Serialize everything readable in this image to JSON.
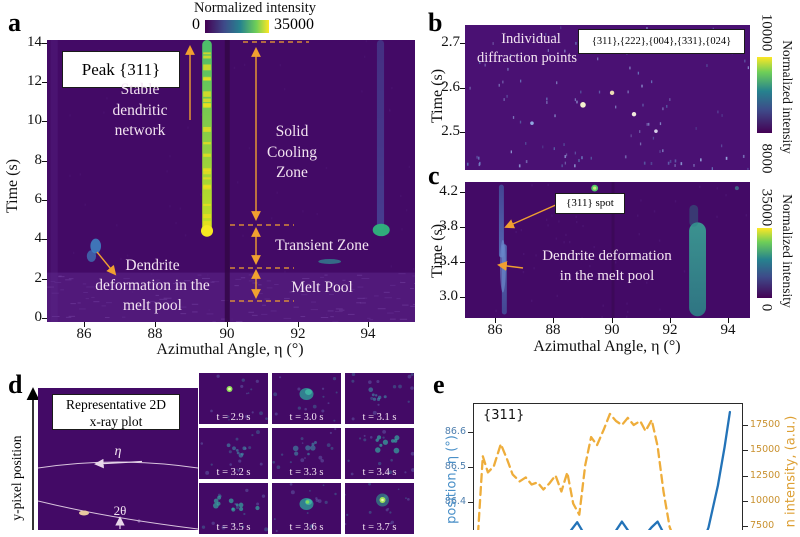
{
  "panels": {
    "a": {
      "label": "a",
      "colorbar": {
        "title": "Normalized intensity",
        "min": "0",
        "max": "35000"
      },
      "peak_box": "Peak {311}",
      "ylabel": "Time (s)",
      "xlabel": "Azimuthal Angle, η (°)",
      "yticks": [
        "14",
        "12",
        "10",
        "8",
        "6",
        "4",
        "2",
        "0"
      ],
      "xticks": [
        "86",
        "88",
        "90",
        "92",
        "94"
      ],
      "ann": {
        "stable": [
          "Stable",
          "dendritic",
          "network"
        ],
        "solid": [
          "Solid",
          "Cooling",
          "Zone"
        ],
        "transient": "Transient Zone",
        "melt": "Melt Pool",
        "dendrite": [
          "Dendrite",
          "deformation in the",
          "melt pool"
        ]
      }
    },
    "b": {
      "label": "b",
      "ylabel": "Time (s)",
      "yticks": [
        "2.7",
        "2.6",
        "2.5"
      ],
      "ann": {
        "line1": "Individual",
        "line2": "diffraction points"
      },
      "peaks_box": "{311},{222},{004},{331},{024}",
      "colorbar": {
        "title": "Normalized intensity",
        "max": "10000",
        "min": "8000"
      }
    },
    "c": {
      "label": "c",
      "ylabel": "Time (s)",
      "yticks": [
        "4.2",
        "3.8",
        "3.4",
        "3.0"
      ],
      "xticks": [
        "86",
        "88",
        "90",
        "92",
        "94"
      ],
      "xlabel": "Azimuthal Angle, η (°)",
      "spot_box": "{311} spot",
      "ann": {
        "line1": "Dendrite deformation",
        "line2": "in the melt pool"
      },
      "colorbar": {
        "title": "Normalized intensity",
        "max": "35000",
        "min": "0"
      }
    },
    "d": {
      "label": "d",
      "ylabel": "y-pixel position",
      "box": [
        "Representative 2D",
        "x-ray plot"
      ],
      "eta_symbol": "η",
      "two_theta": "2θ"
    },
    "e": {
      "label": "e",
      "peak": "{311}",
      "left_label": "position, η (°)",
      "right_label": "n intensity, (a.u.)",
      "left_ticks": [
        "86.6",
        "86.5",
        "86.4"
      ],
      "right_ticks": [
        "17500",
        "15000",
        "12500",
        "10000",
        "7500"
      ]
    }
  },
  "chart_data": [
    {
      "id": "a",
      "type": "heatmap",
      "title": "Peak {311}",
      "xlabel": "Azimuthal Angle, η (°)",
      "ylabel": "Time (s)",
      "x_range": [
        84.95,
        95.3
      ],
      "y_range": [
        0,
        14.35
      ],
      "colorbar": {
        "label": "Normalized intensity",
        "min": 0,
        "max": 35000
      },
      "features": [
        {
          "kind": "band",
          "t": [
            2.35,
            -0.2
          ],
          "color": "#51197a",
          "opacity": 1
        },
        {
          "kind": "hnoise",
          "n": 130,
          "t": [
            2.35,
            -0.2
          ],
          "colors": [
            "#6b3898",
            "#7d4cab"
          ],
          "opacity": 0.45,
          "seed": 7
        },
        {
          "kind": "noise",
          "n": 70,
          "colors": [
            "#5d2b8a"
          ],
          "opacity": 0.22,
          "seed": 9
        },
        {
          "kind": "column",
          "eta": 85.15,
          "w_deg": 0.2,
          "color": "#5d2b8a",
          "opacity": 0.3
        },
        {
          "kind": "column",
          "eta": 90.02,
          "w_deg": 0.14,
          "color": "#330747",
          "opacity": 0.85
        },
        {
          "kind": "vstreak",
          "eta": 89.45,
          "w_deg": 0.27,
          "t": [
            14.35,
            4.3
          ],
          "grad": [
            "#4bbd6c",
            "#c9e01f"
          ],
          "opacity": 1,
          "mottle": true
        },
        {
          "kind": "blob",
          "eta": 89.45,
          "t": 4.5,
          "rx_deg": 0.17,
          "ry_t": 0.3,
          "color": "#f6e822",
          "opacity": 1
        },
        {
          "kind": "vstreak",
          "eta": 94.33,
          "w_deg": 0.2,
          "t": [
            14.35,
            4.55
          ],
          "grad": [
            "#46549e",
            "#4a6fb8"
          ],
          "opacity": 0.5
        },
        {
          "kind": "blob",
          "eta": 94.35,
          "t": 4.55,
          "rx_deg": 0.24,
          "ry_t": 0.32,
          "color": "#2fb47c",
          "opacity": 0.95
        },
        {
          "kind": "blob",
          "eta": 86.32,
          "t": 3.72,
          "rx_deg": 0.15,
          "ry_t": 0.38,
          "color": "#3f7fc1",
          "opacity": 0.9
        },
        {
          "kind": "blob",
          "eta": 86.2,
          "t": 3.2,
          "rx_deg": 0.13,
          "ry_t": 0.3,
          "color": "#3f7fc1",
          "opacity": 0.7
        },
        {
          "kind": "blob",
          "eta": 92.9,
          "t": 2.92,
          "rx_deg": 0.32,
          "ry_t": 0.13,
          "color": "#2e9e9a",
          "opacity": 0.65
        }
      ],
      "annotations": [
        "Stable dendritic network",
        "Solid Cooling Zone",
        "Transient Zone",
        "Melt Pool",
        "Dendrite deformation in the melt pool"
      ]
    },
    {
      "id": "b",
      "type": "heatmap",
      "title": "Individual diffraction points",
      "peaks": "{311},{222},{004},{331},{024}",
      "ylabel": "Time (s)",
      "y_range": [
        2.415,
        2.74
      ],
      "colorbar": {
        "label": "Normalized intensity",
        "min": 8000,
        "max": 10000
      },
      "bright_points": [
        {
          "fx": 0.414,
          "t": 2.561,
          "r": 2.8,
          "color": "#f5f2cf"
        },
        {
          "fx": 0.516,
          "t": 2.588,
          "r": 2.2,
          "color": "#ecdcb4"
        },
        {
          "fx": 0.593,
          "t": 2.54,
          "r": 2.2,
          "color": "#f2ecdc"
        },
        {
          "fx": 0.67,
          "t": 2.502,
          "r": 1.8,
          "color": "#d6cfe8"
        },
        {
          "fx": 0.235,
          "t": 2.52,
          "r": 1.8,
          "color": "#8fa8e0"
        }
      ],
      "noise": {
        "n": 85,
        "seed": 11
      },
      "edge_noise": {
        "n": 20,
        "t": [
          2.45,
          2.425
        ],
        "seed": 17
      }
    },
    {
      "id": "c",
      "type": "heatmap",
      "title": "{311} spot",
      "xlabel": "Azimuthal Angle, η (°)",
      "ylabel": "Time (s)",
      "x_range": [
        84.97,
        94.75
      ],
      "y_range": [
        2.76,
        4.31
      ],
      "colorbar": {
        "label": "Normalized intensity",
        "min": 0,
        "max": 35000
      },
      "features": [
        {
          "kind": "noise",
          "n": 55,
          "colors": [
            "#5d2b8a"
          ],
          "opacity": 0.3,
          "seed": 13
        },
        {
          "kind": "column",
          "eta": 90.05,
          "w_deg": 0.1,
          "color": "#380850",
          "opacity": 0.6
        },
        {
          "kind": "vstreak",
          "eta": 86.22,
          "w_deg": 0.17,
          "t": [
            4.28,
            3.45
          ],
          "grad": [
            "#44549e",
            "#5a7ec4"
          ],
          "opacity": 0.8
        },
        {
          "kind": "vstreak",
          "eta": 86.32,
          "w_deg": 0.17,
          "t": [
            3.6,
            2.8
          ],
          "grad": [
            "#5a7ec4",
            "#44549e"
          ],
          "opacity": 0.8
        },
        {
          "kind": "blob",
          "eta": 86.27,
          "t": 3.35,
          "rx_deg": 0.1,
          "ry_t": 0.3,
          "color": "#6f8fd0",
          "opacity": 0.6
        },
        {
          "kind": "vstreak",
          "eta": 92.95,
          "w_deg": 0.58,
          "t": [
            3.85,
            2.78
          ],
          "grad": [
            "#39b49a",
            "#2a8f8a"
          ],
          "opacity": 0.8
        },
        {
          "kind": "vstreak",
          "eta": 92.82,
          "w_deg": 0.3,
          "t": [
            4.05,
            3.8
          ],
          "grad": [
            "#2a7f86",
            "#2a7f86"
          ],
          "opacity": 0.4
        },
        {
          "kind": "dot",
          "eta": 89.42,
          "t": 4.24,
          "r": 3.4,
          "color": "#55c96a",
          "opacity": 1
        },
        {
          "kind": "dot",
          "eta": 89.42,
          "t": 4.24,
          "r": 1.6,
          "color": "#cdea7e",
          "opacity": 1
        },
        {
          "kind": "dot",
          "eta": 94.3,
          "t": 4.24,
          "r": 2.0,
          "color": "#3f9f9a",
          "opacity": 0.6
        }
      ],
      "annotations": [
        "Dendrite deformation in the melt pool"
      ]
    },
    {
      "id": "d",
      "type": "image-grid",
      "main_label": "Representative 2D x-ray plot",
      "tiles": [
        {
          "label": "t = 2.9 s",
          "feat": "bright-dot"
        },
        {
          "label": "t = 3.0 s",
          "feat": "teal-blob"
        },
        {
          "label": "t = 3.1 s",
          "feat": "faint-cluster"
        },
        {
          "label": "t = 3.2 s",
          "feat": "faint-cluster"
        },
        {
          "label": "t = 3.3 s",
          "feat": "faint-cluster"
        },
        {
          "label": "t = 3.4 s",
          "feat": "teal-cluster-ur"
        },
        {
          "label": "t = 3.5 s",
          "feat": "specks-wide"
        },
        {
          "label": "t = 3.6 s",
          "feat": "teal-blob-bright"
        },
        {
          "label": "t = 3.7 s",
          "feat": "bright-dot-halo"
        }
      ]
    },
    {
      "id": "e",
      "type": "line",
      "title": "{311}",
      "ylabel_left": "position, η (°)",
      "ylabel_right": "n intensity, (a.u.)",
      "ylim_left": [
        86.3,
        86.7
      ],
      "ylim_right": [
        6000,
        19500
      ],
      "series": [
        {
          "name": "peak position",
          "axis": "left",
          "color": "#2373b8",
          "style": "solid",
          "x": [
            0.0,
            0.08,
            0.15,
            0.22,
            0.3,
            0.35,
            0.385,
            0.42,
            0.46,
            0.52,
            0.552,
            0.585,
            0.63,
            0.662,
            0.685,
            0.71,
            0.76,
            0.82,
            0.86,
            0.875,
            0.91,
            0.935,
            0.955
          ],
          "y": [
            86.3,
            86.31,
            86.3,
            86.31,
            86.3,
            86.31,
            86.345,
            86.3,
            86.31,
            86.31,
            86.347,
            86.31,
            86.3,
            86.33,
            86.347,
            86.31,
            86.3,
            86.3,
            86.3,
            86.33,
            86.45,
            86.56,
            86.66
          ]
        },
        {
          "name": "intensity",
          "axis": "right",
          "color": "#eead3b",
          "style": "dashed",
          "x": [
            0.015,
            0.033,
            0.052,
            0.074,
            0.1,
            0.122,
            0.144,
            0.17,
            0.193,
            0.215,
            0.237,
            0.259,
            0.281,
            0.304,
            0.326,
            0.348,
            0.37,
            0.393,
            0.415,
            0.437,
            0.459,
            0.485,
            0.507,
            0.53,
            0.552,
            0.574,
            0.596,
            0.62,
            0.64,
            0.663,
            0.685,
            0.707,
            0.73,
            0.745
          ],
          "y": [
            6800,
            14500,
            12900,
            13500,
            15700,
            14300,
            12700,
            12000,
            12400,
            11700,
            11900,
            11200,
            11800,
            12600,
            11000,
            12900,
            9800,
            8700,
            13600,
            16400,
            15600,
            17200,
            18700,
            18000,
            17600,
            18300,
            17600,
            18000,
            17000,
            18100,
            15500,
            11000,
            7500,
            6400
          ]
        }
      ]
    }
  ]
}
